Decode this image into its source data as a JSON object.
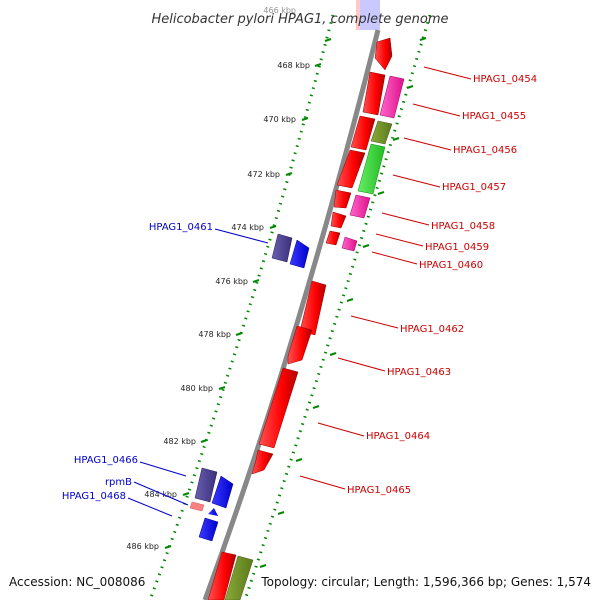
{
  "title": "Helicobacter pylori HPAG1, complete genome",
  "footer": {
    "accession": "Accession: NC_008086",
    "topology": "Topology: circular; Length: 1,596,366 bp; Genes: 1,574"
  },
  "ticks": [
    "466 kbp",
    "468 kbp",
    "470 kbp",
    "472 kbp",
    "474 kbp",
    "476 kbp",
    "478 kbp",
    "480 kbp",
    "482 kbp",
    "484 kbp",
    "486 kbp"
  ],
  "colors": {
    "backbone": "#888888",
    "tick": "#008800",
    "red_gene": "#ff0000",
    "pink_gene": "#ff1493",
    "olive_gene": "#6b8e23",
    "green_gene": "#33cc33",
    "navy_gene": "#483d8b",
    "blue_gene": "#0000ff",
    "salmon_gene": "#ff8080",
    "label_red": "#cc0000",
    "label_blue": "#0000cc"
  },
  "labels_right": [
    "HPAG1_0454",
    "HPAG1_0455",
    "HPAG1_0456",
    "HPAG1_0457",
    "HPAG1_0458",
    "HPAG1_0459",
    "HPAG1_0460",
    "HPAG1_0462",
    "HPAG1_0463",
    "HPAG1_0464",
    "HPAG1_0465"
  ],
  "labels_left": [
    "HPAG1_0461",
    "HPAG1_0466",
    "rpmB",
    "HPAG1_0468"
  ]
}
